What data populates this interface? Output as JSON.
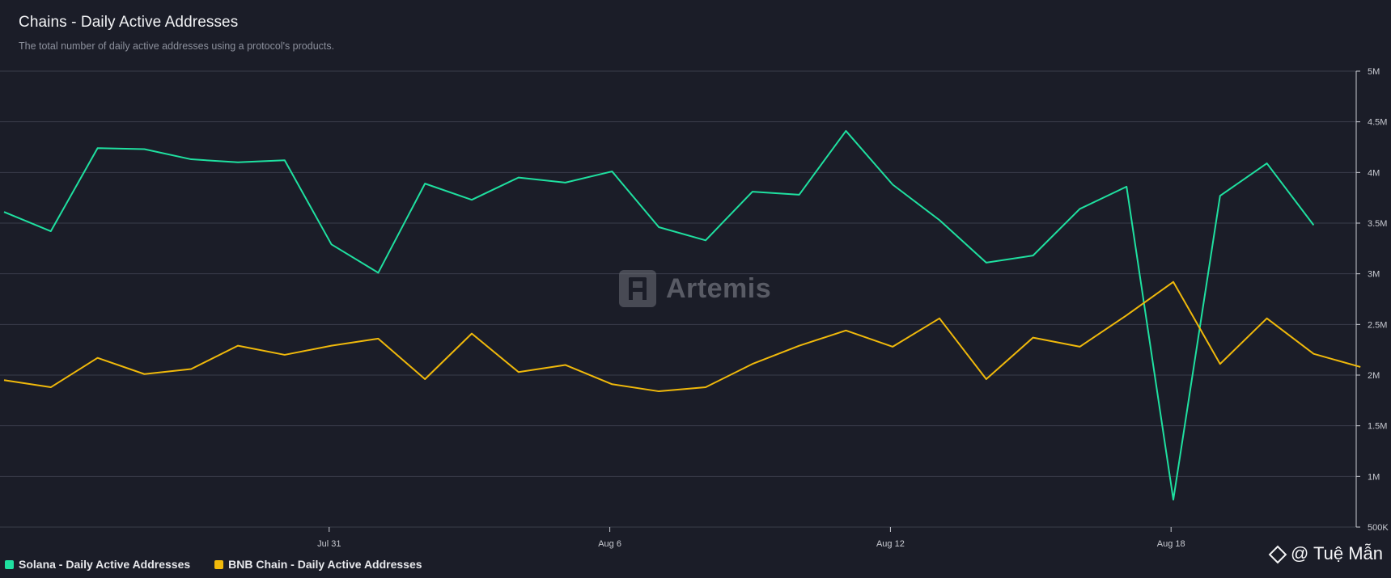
{
  "header": {
    "title": "Chains - Daily Active Addresses",
    "subtitle": "The total number of daily active addresses using a protocol's products."
  },
  "watermark": {
    "text": "Artemis"
  },
  "credit": {
    "text": "@ Tuệ Mẫn",
    "icon": "binance-diamond-icon"
  },
  "chart_data": {
    "type": "line",
    "x_tick_labels": [
      "Jul 31",
      "Aug 6",
      "Aug 12",
      "Aug 18"
    ],
    "y_tick_labels": [
      "500K",
      "1M",
      "1.5M",
      "2M",
      "2.5M",
      "3M",
      "3.5M",
      "4M",
      "4.5M",
      "5M"
    ],
    "ylim": [
      500000,
      5000000
    ],
    "y_ticks": [
      500000,
      1000000,
      1500000,
      2000000,
      2500000,
      3000000,
      3500000,
      4000000,
      4500000,
      5000000
    ],
    "x_start_index": 0,
    "x_tick_index": [
      6,
      12,
      18,
      24
    ],
    "grid": true,
    "legend_position": "bottom-left",
    "series": [
      {
        "name": "Solana - Daily Active Addresses",
        "color": "#1fe0a0",
        "values": [
          3610000,
          3420000,
          4240000,
          4230000,
          4130000,
          4100000,
          4120000,
          3290000,
          3010000,
          3890000,
          3730000,
          3950000,
          3900000,
          4010000,
          3460000,
          3330000,
          3810000,
          3780000,
          4410000,
          3880000,
          3530000,
          3110000,
          3180000,
          3640000,
          3860000,
          770000,
          3770000,
          4090000,
          3480000
        ]
      },
      {
        "name": "BNB Chain - Daily Active Addresses",
        "color": "#f0b90b",
        "values": [
          1950000,
          1880000,
          2170000,
          2010000,
          2060000,
          2290000,
          2200000,
          2290000,
          2360000,
          1960000,
          2410000,
          2030000,
          2100000,
          1910000,
          1840000,
          1880000,
          2110000,
          2290000,
          2440000,
          2280000,
          2560000,
          1960000,
          2370000,
          2280000,
          2590000,
          2920000,
          2110000,
          2560000,
          2210000,
          2080000
        ]
      }
    ]
  }
}
